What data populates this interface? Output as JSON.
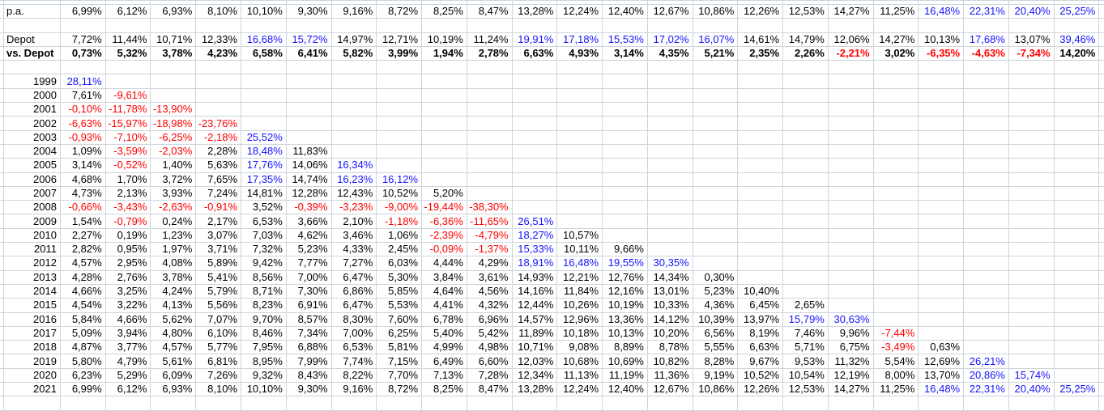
{
  "style": {
    "gridline": "#ccd5dd",
    "negative_color": "#ff0000",
    "high_color": "#1414ff",
    "default_color": "#000000",
    "high_threshold": 15
  },
  "sheet": {
    "column_count": 23,
    "summary_rows": [
      {
        "label": "p.a.",
        "bold": false,
        "values": [
          "6,99%",
          "6,12%",
          "6,93%",
          "8,10%",
          "10,10%",
          "9,30%",
          "9,16%",
          "8,72%",
          "8,25%",
          "8,47%",
          "13,28%",
          "12,24%",
          "12,40%",
          "12,67%",
          "10,86%",
          "12,26%",
          "12,53%",
          "14,27%",
          "11,25%",
          "16,48%",
          "22,31%",
          "20,40%",
          "25,25%"
        ]
      },
      {
        "label": "Depot",
        "bold": false,
        "values": [
          "7,72%",
          "11,44%",
          "10,71%",
          "12,33%",
          "16,68%",
          "15,72%",
          "14,97%",
          "12,71%",
          "10,19%",
          "11,24%",
          "19,91%",
          "17,18%",
          "15,53%",
          "17,02%",
          "16,07%",
          "14,61%",
          "14,79%",
          "12,06%",
          "14,27%",
          "10,13%",
          "17,68%",
          "13,07%",
          "39,46%"
        ]
      },
      {
        "label": "vs. Depot",
        "bold": true,
        "values": [
          "0,73%",
          "5,32%",
          "3,78%",
          "4,23%",
          "6,58%",
          "6,41%",
          "5,82%",
          "3,99%",
          "1,94%",
          "2,78%",
          "6,63%",
          "4,93%",
          "3,14%",
          "4,35%",
          "5,21%",
          "2,35%",
          "2,26%",
          "-2,21%",
          "3,02%",
          "-6,35%",
          "-4,63%",
          "-7,34%",
          "14,20%"
        ]
      }
    ],
    "year_rows": [
      {
        "label": "1999",
        "values": [
          "28,11%"
        ]
      },
      {
        "label": "2000",
        "values": [
          "7,61%",
          "-9,61%"
        ]
      },
      {
        "label": "2001",
        "values": [
          "-0,10%",
          "-11,78%",
          "-13,90%"
        ]
      },
      {
        "label": "2002",
        "values": [
          "-6,63%",
          "-15,97%",
          "-18,98%",
          "-23,76%"
        ]
      },
      {
        "label": "2003",
        "values": [
          "-0,93%",
          "-7,10%",
          "-6,25%",
          "-2,18%",
          "25,52%"
        ]
      },
      {
        "label": "2004",
        "values": [
          "1,09%",
          "-3,59%",
          "-2,03%",
          "2,28%",
          "18,48%",
          "11,83%"
        ]
      },
      {
        "label": "2005",
        "values": [
          "3,14%",
          "-0,52%",
          "1,40%",
          "5,63%",
          "17,76%",
          "14,06%",
          "16,34%"
        ]
      },
      {
        "label": "2006",
        "values": [
          "4,68%",
          "1,70%",
          "3,72%",
          "7,65%",
          "17,35%",
          "14,74%",
          "16,23%",
          "16,12%"
        ]
      },
      {
        "label": "2007",
        "values": [
          "4,73%",
          "2,13%",
          "3,93%",
          "7,24%",
          "14,81%",
          "12,28%",
          "12,43%",
          "10,52%",
          "5,20%"
        ]
      },
      {
        "label": "2008",
        "values": [
          "-0,66%",
          "-3,43%",
          "-2,63%",
          "-0,91%",
          "3,52%",
          "-0,39%",
          "-3,23%",
          "-9,00%",
          "-19,44%",
          "-38,30%"
        ]
      },
      {
        "label": "2009",
        "values": [
          "1,54%",
          "-0,79%",
          "0,24%",
          "2,17%",
          "6,53%",
          "3,66%",
          "2,10%",
          "-1,18%",
          "-6,36%",
          "-11,65%",
          "26,51%"
        ]
      },
      {
        "label": "2010",
        "values": [
          "2,27%",
          "0,19%",
          "1,23%",
          "3,07%",
          "7,03%",
          "4,62%",
          "3,46%",
          "1,06%",
          "-2,39%",
          "-4,79%",
          "18,27%",
          "10,57%"
        ]
      },
      {
        "label": "2011",
        "values": [
          "2,82%",
          "0,95%",
          "1,97%",
          "3,71%",
          "7,32%",
          "5,23%",
          "4,33%",
          "2,45%",
          "-0,09%",
          "-1,37%",
          "15,33%",
          "10,11%",
          "9,66%"
        ]
      },
      {
        "label": "2012",
        "values": [
          "4,57%",
          "2,95%",
          "4,08%",
          "5,89%",
          "9,42%",
          "7,77%",
          "7,27%",
          "6,03%",
          "4,44%",
          "4,29%",
          "18,91%",
          "16,48%",
          "19,55%",
          "30,35%"
        ]
      },
      {
        "label": "2013",
        "values": [
          "4,28%",
          "2,76%",
          "3,78%",
          "5,41%",
          "8,56%",
          "7,00%",
          "6,47%",
          "5,30%",
          "3,84%",
          "3,61%",
          "14,93%",
          "12,21%",
          "12,76%",
          "14,34%",
          "0,30%"
        ]
      },
      {
        "label": "2014",
        "values": [
          "4,66%",
          "3,25%",
          "4,24%",
          "5,79%",
          "8,71%",
          "7,30%",
          "6,86%",
          "5,85%",
          "4,64%",
          "4,56%",
          "14,16%",
          "11,84%",
          "12,16%",
          "13,01%",
          "5,23%",
          "10,40%"
        ]
      },
      {
        "label": "2015",
        "values": [
          "4,54%",
          "3,22%",
          "4,13%",
          "5,56%",
          "8,23%",
          "6,91%",
          "6,47%",
          "5,53%",
          "4,41%",
          "4,32%",
          "12,44%",
          "10,26%",
          "10,19%",
          "10,33%",
          "4,36%",
          "6,45%",
          "2,65%"
        ]
      },
      {
        "label": "2016",
        "values": [
          "5,84%",
          "4,66%",
          "5,62%",
          "7,07%",
          "9,70%",
          "8,57%",
          "8,30%",
          "7,60%",
          "6,78%",
          "6,96%",
          "14,57%",
          "12,96%",
          "13,36%",
          "14,12%",
          "10,39%",
          "13,97%",
          "15,79%",
          "30,63%"
        ]
      },
      {
        "label": "2017",
        "values": [
          "5,09%",
          "3,94%",
          "4,80%",
          "6,10%",
          "8,46%",
          "7,34%",
          "7,00%",
          "6,25%",
          "5,40%",
          "5,42%",
          "11,89%",
          "10,18%",
          "10,13%",
          "10,20%",
          "6,56%",
          "8,19%",
          "7,46%",
          "9,96%",
          "-7,44%"
        ]
      },
      {
        "label": "2018",
        "values": [
          "4,87%",
          "3,77%",
          "4,57%",
          "5,77%",
          "7,95%",
          "6,88%",
          "6,53%",
          "5,81%",
          "4,99%",
          "4,98%",
          "10,71%",
          "9,08%",
          "8,89%",
          "8,78%",
          "5,55%",
          "6,63%",
          "5,71%",
          "6,75%",
          "-3,49%",
          "0,63%"
        ]
      },
      {
        "label": "2019",
        "values": [
          "5,80%",
          "4,79%",
          "5,61%",
          "6,81%",
          "8,95%",
          "7,99%",
          "7,74%",
          "7,15%",
          "6,49%",
          "6,60%",
          "12,03%",
          "10,68%",
          "10,69%",
          "10,82%",
          "8,28%",
          "9,67%",
          "9,53%",
          "11,32%",
          "5,54%",
          "12,69%",
          "26,21%"
        ]
      },
      {
        "label": "2020",
        "values": [
          "6,23%",
          "5,29%",
          "6,09%",
          "7,26%",
          "9,32%",
          "8,43%",
          "8,22%",
          "7,70%",
          "7,13%",
          "7,28%",
          "12,34%",
          "11,13%",
          "11,19%",
          "11,36%",
          "9,19%",
          "10,52%",
          "10,54%",
          "12,19%",
          "8,00%",
          "13,70%",
          "20,86%",
          "15,74%"
        ]
      },
      {
        "label": "2021",
        "values": [
          "6,99%",
          "6,12%",
          "6,93%",
          "8,10%",
          "10,10%",
          "9,30%",
          "9,16%",
          "8,72%",
          "8,25%",
          "8,47%",
          "13,28%",
          "12,24%",
          "12,40%",
          "12,67%",
          "10,86%",
          "12,26%",
          "12,53%",
          "14,27%",
          "11,25%",
          "16,48%",
          "22,31%",
          "20,40%",
          "25,25%"
        ]
      }
    ]
  }
}
